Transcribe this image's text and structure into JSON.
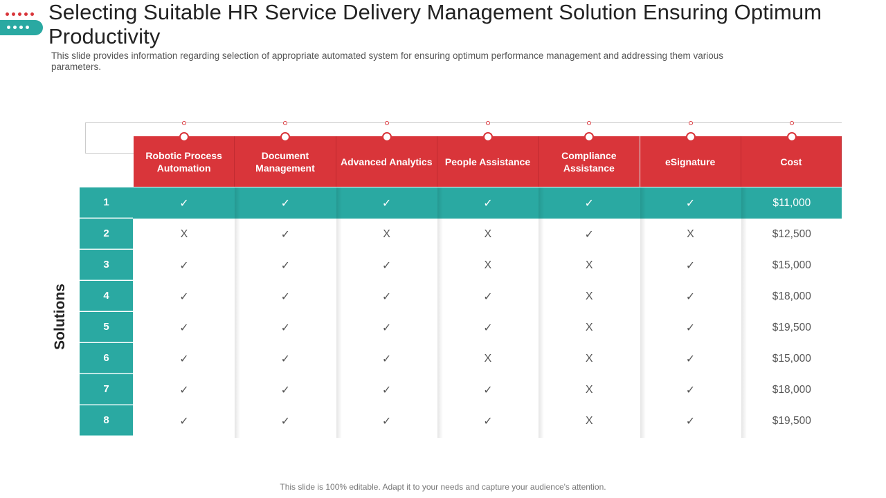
{
  "title": "Selecting Suitable HR Service Delivery Management Solution Ensuring Optimum Productivity",
  "subtitle": "This slide provides information regarding selection of appropriate automated system for ensuring optimum performance management and addressing them various parameters.",
  "footer": "This slide is 100% editable. Adapt it to your needs and capture your audience's attention.",
  "row_axis_label": "Solutions",
  "colors": {
    "accent_red": "#d9353a",
    "accent_teal": "#2aa9a2"
  },
  "table": {
    "columns": [
      "Robotic Process Automation",
      "Document Management",
      "Advanced Analytics",
      "People Assistance",
      "Compliance Assistance",
      "eSignature",
      "Cost"
    ],
    "rows": [
      {
        "label": "1",
        "cells": [
          "✓",
          "✓",
          "✓",
          "✓",
          "✓",
          "✓",
          "$11,000"
        ]
      },
      {
        "label": "2",
        "cells": [
          "X",
          "✓",
          "X",
          "X",
          "✓",
          "X",
          "$12,500"
        ]
      },
      {
        "label": "3",
        "cells": [
          "✓",
          "✓",
          "✓",
          "X",
          "X",
          "✓",
          "$15,000"
        ]
      },
      {
        "label": "4",
        "cells": [
          "✓",
          "✓",
          "✓",
          "✓",
          "X",
          "✓",
          "$18,000"
        ]
      },
      {
        "label": "5",
        "cells": [
          "✓",
          "✓",
          "✓",
          "✓",
          "X",
          "✓",
          "$19,500"
        ]
      },
      {
        "label": "6",
        "cells": [
          "✓",
          "✓",
          "✓",
          "X",
          "X",
          "✓",
          "$15,000"
        ]
      },
      {
        "label": "7",
        "cells": [
          "✓",
          "✓",
          "✓",
          "✓",
          "X",
          "✓",
          "$18,000"
        ]
      },
      {
        "label": "8",
        "cells": [
          "✓",
          "✓",
          "✓",
          "✓",
          "X",
          "✓",
          "$19,500"
        ]
      }
    ]
  }
}
